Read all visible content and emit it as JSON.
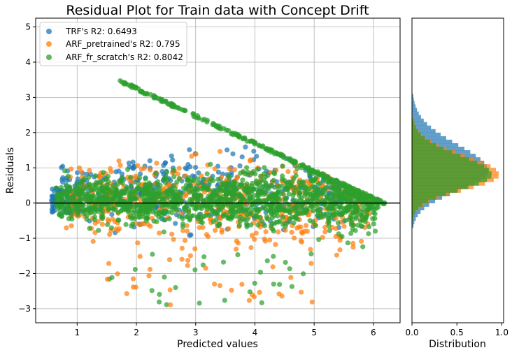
{
  "chart_data": [
    {
      "type": "scatter",
      "title": "Residual Plot for Train data with Concept Drift",
      "xlabel": "Predicted values",
      "ylabel": "Residuals",
      "xlim": [
        0.3,
        6.45
      ],
      "ylim": [
        -3.4,
        5.25
      ],
      "xticks": [
        1,
        2,
        3,
        4,
        5,
        6
      ],
      "yticks": [
        -3,
        -2,
        -1,
        0,
        1,
        2,
        3,
        4,
        5
      ],
      "grid": true,
      "reference_line_y": 0,
      "legend_position": "top-left",
      "series": [
        {
          "name": "TRF's R2: 0.6493",
          "color": "#1f77b4",
          "x_range": [
            0.5,
            5.7
          ],
          "y_range": [
            -1.5,
            4.0
          ]
        },
        {
          "name": "ARF_pretrained's R2: 0.795",
          "color": "#ff7f0e",
          "x_range": [
            0.8,
            6.0
          ],
          "y_range": [
            -3.0,
            3.5
          ]
        },
        {
          "name": "ARF_fr_scratch's R2: 0.8042",
          "color": "#2ca02c",
          "x_range": [
            0.6,
            6.2
          ],
          "y_range": [
            -2.3,
            3.9
          ]
        }
      ]
    },
    {
      "type": "bar",
      "orientation": "horizontal",
      "xlabel": "Distribution",
      "xlim": [
        0,
        1.02
      ],
      "xticks": [
        0.0,
        0.5,
        1.0
      ],
      "y_shared_with_scatter": true,
      "series": [
        {
          "name": "TRF",
          "color": "#1f77b4",
          "peak_y": 0.9,
          "peak_density": 0.85
        },
        {
          "name": "ARF_pretrained",
          "color": "#ff7f0e",
          "peak_y": 0.8,
          "peak_density": 0.97
        },
        {
          "name": "ARF_fr_scratch",
          "color": "#2ca02c",
          "peak_y": 0.8,
          "peak_density": 0.89
        }
      ]
    }
  ]
}
